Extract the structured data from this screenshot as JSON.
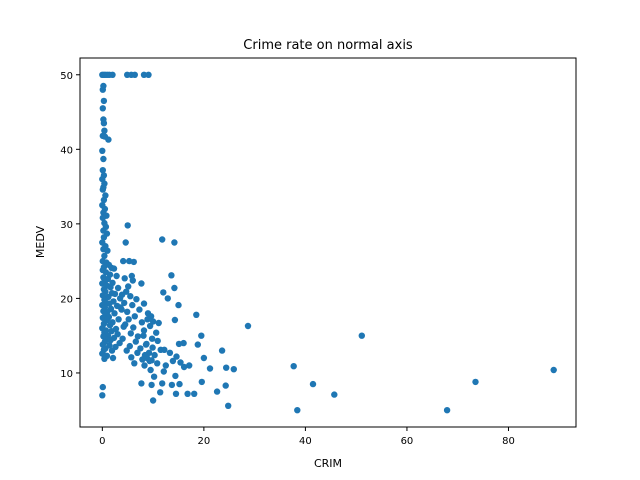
{
  "chart_data": {
    "type": "scatter",
    "title": "Crime rate on normal axis",
    "xlabel": "CRIM",
    "ylabel": "MEDV",
    "xlim": [
      -4.4,
      93.3
    ],
    "ylim": [
      2.75,
      52.25
    ],
    "xticks": [
      0,
      20,
      40,
      60,
      80
    ],
    "yticks": [
      10,
      20,
      30,
      40,
      50
    ],
    "grid": false,
    "marker_color": "#1f77b4",
    "points": [
      [
        0.0,
        50.0
      ],
      [
        0.3,
        50.0
      ],
      [
        0.6,
        50.0
      ],
      [
        1.0,
        50.0
      ],
      [
        1.4,
        50.0
      ],
      [
        2.0,
        50.0
      ],
      [
        4.9,
        50.0
      ],
      [
        5.7,
        50.0
      ],
      [
        6.4,
        50.0
      ],
      [
        8.2,
        50.0
      ],
      [
        9.1,
        50.0
      ],
      [
        0.2,
        48.5
      ],
      [
        0.1,
        48.0
      ],
      [
        0.3,
        46.5
      ],
      [
        0.1,
        45.5
      ],
      [
        0.2,
        44.0
      ],
      [
        0.3,
        43.5
      ],
      [
        0.4,
        42.5
      ],
      [
        0.1,
        41.8
      ],
      [
        1.2,
        41.3
      ],
      [
        0.5,
        41.7
      ],
      [
        0.0,
        39.8
      ],
      [
        0.2,
        38.7
      ],
      [
        0.1,
        37.2
      ],
      [
        0.3,
        36.5
      ],
      [
        0.0,
        36.0
      ],
      [
        0.4,
        35.4
      ],
      [
        0.2,
        34.9
      ],
      [
        0.1,
        34.6
      ],
      [
        0.6,
        33.8
      ],
      [
        0.3,
        33.2
      ],
      [
        0.0,
        32.5
      ],
      [
        0.5,
        32.0
      ],
      [
        0.2,
        31.5
      ],
      [
        0.8,
        31.1
      ],
      [
        0.1,
        30.8
      ],
      [
        0.4,
        30.1
      ],
      [
        0.7,
        29.6
      ],
      [
        0.2,
        29.1
      ],
      [
        0.9,
        28.7
      ],
      [
        0.3,
        28.2
      ],
      [
        0.0,
        27.5
      ],
      [
        0.6,
        27.0
      ],
      [
        0.2,
        26.6
      ],
      [
        1.0,
        26.4
      ],
      [
        0.4,
        25.7
      ],
      [
        0.1,
        25.0
      ],
      [
        0.8,
        24.8
      ],
      [
        1.3,
        24.5
      ],
      [
        0.3,
        24.2
      ],
      [
        1.8,
        24.1
      ],
      [
        2.3,
        24.0
      ],
      [
        0.1,
        23.8
      ],
      [
        0.7,
        23.5
      ],
      [
        1.5,
        23.2
      ],
      [
        2.8,
        23.0
      ],
      [
        0.2,
        22.8
      ],
      [
        1.1,
        22.6
      ],
      [
        0.5,
        22.3
      ],
      [
        2.0,
        22.1
      ],
      [
        0.0,
        22.0
      ],
      [
        0.9,
        21.7
      ],
      [
        1.6,
        21.5
      ],
      [
        3.1,
        21.4
      ],
      [
        0.3,
        21.2
      ],
      [
        0.6,
        20.9
      ],
      [
        1.9,
        20.7
      ],
      [
        2.5,
        20.6
      ],
      [
        0.1,
        20.4
      ],
      [
        1.2,
        20.2
      ],
      [
        3.5,
        20.0
      ],
      [
        0.4,
        19.8
      ],
      [
        2.2,
        19.6
      ],
      [
        0.8,
        19.4
      ],
      [
        1.4,
        19.3
      ],
      [
        0.0,
        19.1
      ],
      [
        2.9,
        19.0
      ],
      [
        0.5,
        18.8
      ],
      [
        1.7,
        18.6
      ],
      [
        3.8,
        18.5
      ],
      [
        0.2,
        18.3
      ],
      [
        1.0,
        18.2
      ],
      [
        2.4,
        18.0
      ],
      [
        0.6,
        17.8
      ],
      [
        1.3,
        17.5
      ],
      [
        0.1,
        17.4
      ],
      [
        3.2,
        17.2
      ],
      [
        0.9,
        17.1
      ],
      [
        2.0,
        16.8
      ],
      [
        0.3,
        16.6
      ],
      [
        1.5,
        16.4
      ],
      [
        4.2,
        16.2
      ],
      [
        0.0,
        16.0
      ],
      [
        2.7,
        15.9
      ],
      [
        0.7,
        15.7
      ],
      [
        1.8,
        15.6
      ],
      [
        0.4,
        15.4
      ],
      [
        3.0,
        15.2
      ],
      [
        1.1,
        15.0
      ],
      [
        0.2,
        14.9
      ],
      [
        2.3,
        14.7
      ],
      [
        0.8,
        14.5
      ],
      [
        1.6,
        14.4
      ],
      [
        0.5,
        14.2
      ],
      [
        3.4,
        14.0
      ],
      [
        0.1,
        13.8
      ],
      [
        1.4,
        13.7
      ],
      [
        2.6,
        13.5
      ],
      [
        0.6,
        13.3
      ],
      [
        0.3,
        13.1
      ],
      [
        1.9,
        13.0
      ],
      [
        0.0,
        12.6
      ],
      [
        0.9,
        12.3
      ],
      [
        2.1,
        12.0
      ],
      [
        0.4,
        11.9
      ],
      [
        0.1,
        8.1
      ],
      [
        0.0,
        7.0
      ],
      [
        5.0,
        29.8
      ],
      [
        4.6,
        27.5
      ],
      [
        4.1,
        25.0
      ],
      [
        5.3,
        25.0
      ],
      [
        6.2,
        24.9
      ],
      [
        5.8,
        23.0
      ],
      [
        4.4,
        22.7
      ],
      [
        6.0,
        22.4
      ],
      [
        5.1,
        21.6
      ],
      [
        4.7,
        20.9
      ],
      [
        3.9,
        20.5
      ],
      [
        5.5,
        20.3
      ],
      [
        6.7,
        19.9
      ],
      [
        4.3,
        19.4
      ],
      [
        5.9,
        19.1
      ],
      [
        3.6,
        18.8
      ],
      [
        7.3,
        18.5
      ],
      [
        4.9,
        18.2
      ],
      [
        6.4,
        17.6
      ],
      [
        5.2,
        17.2
      ],
      [
        7.8,
        16.8
      ],
      [
        4.5,
        16.5
      ],
      [
        6.1,
        16.1
      ],
      [
        8.2,
        15.7
      ],
      [
        5.6,
        15.3
      ],
      [
        7.0,
        14.9
      ],
      [
        4.0,
        14.6
      ],
      [
        6.6,
        14.2
      ],
      [
        8.7,
        13.9
      ],
      [
        5.4,
        13.6
      ],
      [
        7.5,
        13.3
      ],
      [
        4.8,
        13.0
      ],
      [
        6.9,
        12.7
      ],
      [
        8.4,
        12.4
      ],
      [
        5.7,
        12.1
      ],
      [
        7.9,
        11.8
      ],
      [
        9.3,
        11.6
      ],
      [
        6.3,
        11.3
      ],
      [
        7.7,
        22.0
      ],
      [
        8.2,
        19.3
      ],
      [
        9.0,
        18.0
      ],
      [
        9.6,
        17.6
      ],
      [
        8.9,
        17.2
      ],
      [
        10.0,
        16.9
      ],
      [
        11.1,
        16.7
      ],
      [
        9.4,
        16.3
      ],
      [
        10.6,
        15.4
      ],
      [
        8.1,
        15.0
      ],
      [
        9.8,
        14.6
      ],
      [
        10.9,
        14.3
      ],
      [
        8.6,
        13.8
      ],
      [
        9.9,
        13.4
      ],
      [
        11.5,
        13.1
      ],
      [
        9.2,
        12.7
      ],
      [
        10.3,
        12.4
      ],
      [
        8.8,
        12.0
      ],
      [
        9.7,
        11.7
      ],
      [
        10.8,
        11.3
      ],
      [
        8.3,
        11.0
      ],
      [
        9.5,
        10.4
      ],
      [
        10.2,
        9.5
      ],
      [
        9.7,
        8.4
      ],
      [
        7.7,
        8.6
      ],
      [
        10.0,
        6.3
      ],
      [
        11.8,
        27.9
      ],
      [
        14.2,
        27.5
      ],
      [
        12.0,
        20.8
      ],
      [
        13.6,
        23.1
      ],
      [
        14.2,
        21.4
      ],
      [
        12.9,
        20.0
      ],
      [
        14.3,
        17.1
      ],
      [
        15.0,
        19.1
      ],
      [
        18.5,
        17.8
      ],
      [
        19.5,
        15.0
      ],
      [
        15.1,
        13.9
      ],
      [
        16.0,
        14.0
      ],
      [
        18.8,
        13.8
      ],
      [
        20.0,
        12.0
      ],
      [
        23.6,
        13.0
      ],
      [
        12.2,
        13.1
      ],
      [
        13.3,
        12.7
      ],
      [
        14.6,
        12.2
      ],
      [
        13.9,
        11.6
      ],
      [
        15.4,
        11.4
      ],
      [
        17.1,
        11.0
      ],
      [
        12.5,
        11.0
      ],
      [
        16.1,
        10.8
      ],
      [
        21.2,
        10.6
      ],
      [
        24.4,
        10.7
      ],
      [
        25.9,
        10.5
      ],
      [
        12.1,
        10.2
      ],
      [
        14.4,
        9.6
      ],
      [
        19.6,
        8.8
      ],
      [
        13.7,
        8.4
      ],
      [
        15.2,
        8.5
      ],
      [
        24.3,
        8.3
      ],
      [
        11.8,
        8.6
      ],
      [
        16.8,
        7.2
      ],
      [
        18.1,
        7.2
      ],
      [
        14.5,
        7.2
      ],
      [
        22.6,
        7.5
      ],
      [
        11.4,
        7.4
      ],
      [
        24.8,
        5.6
      ],
      [
        28.7,
        16.3
      ],
      [
        37.7,
        10.9
      ],
      [
        41.5,
        8.5
      ],
      [
        45.7,
        7.1
      ],
      [
        38.4,
        5.0
      ],
      [
        51.1,
        15.0
      ],
      [
        67.9,
        5.0
      ],
      [
        73.5,
        8.8
      ],
      [
        88.9,
        10.4
      ]
    ]
  }
}
